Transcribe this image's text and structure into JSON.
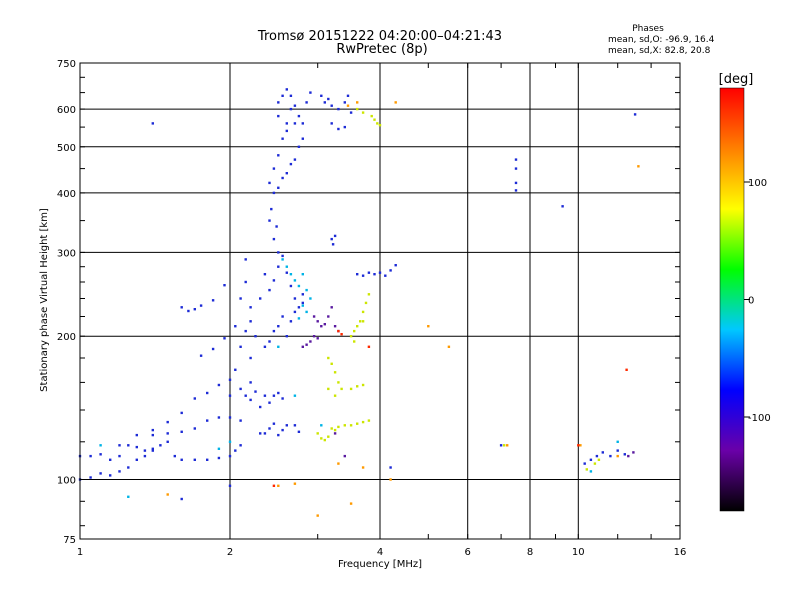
{
  "chart_data": {
    "type": "scatter",
    "title": "Tromsø 20151222 04:20:00–04:21:43",
    "subtitle": "RwPretec (8p)",
    "xlabel": "Frequency [MHz]",
    "ylabel": "Stationary phase Virtual Height [km]",
    "x_scale": "log",
    "y_scale": "log",
    "xlim": [
      1,
      16
    ],
    "ylim": [
      75,
      750
    ],
    "x_ticks": [
      1,
      2,
      4,
      6,
      8,
      10,
      16
    ],
    "x_tick_labels": [
      "1",
      "2",
      "4",
      "6",
      "8",
      "10",
      "16"
    ],
    "x_grid": [
      1,
      2,
      4,
      6,
      8,
      10,
      16
    ],
    "y_ticks": [
      75,
      100,
      200,
      300,
      400,
      500,
      600,
      750
    ],
    "y_tick_labels": [
      "75",
      "100",
      "200",
      "300",
      "400",
      "500",
      "600",
      "750"
    ],
    "y_grid": [
      100,
      200,
      300,
      400,
      500,
      600
    ],
    "grid": true,
    "legend": {
      "heading": "Phases",
      "line1": "mean, sd,O: -96.9, 16.4",
      "line2": "mean, sd,X:  82.8, 20.8",
      "placement": "top-right"
    },
    "colorbar": {
      "label": "[deg]",
      "range": [
        -180,
        180
      ],
      "ticks": [
        100,
        0,
        -100
      ],
      "tick_labels": [
        "100",
        "0",
        "-100"
      ],
      "colors": [
        "#000000",
        "#6a00a8",
        "#0000ff",
        "#00c8ff",
        "#00ff00",
        "#ffff00",
        "#ff8000",
        "#ff0000"
      ]
    },
    "series": [
      {
        "phase": -100,
        "color": "#1d2bd6",
        "points": [
          [
            1.0,
            112
          ],
          [
            1.05,
            112
          ],
          [
            1.1,
            113
          ],
          [
            1.15,
            110
          ],
          [
            1.2,
            112
          ],
          [
            1.25,
            118
          ],
          [
            1.3,
            117
          ],
          [
            1.35,
            115
          ],
          [
            1.4,
            116
          ],
          [
            1.45,
            118
          ],
          [
            1.5,
            120
          ],
          [
            1.55,
            112
          ],
          [
            1.6,
            110
          ],
          [
            1.7,
            110
          ],
          [
            1.8,
            110
          ],
          [
            1.9,
            111
          ],
          [
            2.0,
            112
          ],
          [
            2.05,
            115
          ],
          [
            2.1,
            118
          ],
          [
            1.0,
            100
          ],
          [
            1.05,
            101
          ],
          [
            1.1,
            103
          ],
          [
            1.15,
            102
          ],
          [
            1.2,
            104
          ],
          [
            1.25,
            106
          ],
          [
            1.3,
            110
          ],
          [
            1.35,
            112
          ],
          [
            1.4,
            115
          ],
          [
            1.2,
            118
          ],
          [
            1.3,
            124
          ],
          [
            1.4,
            127
          ],
          [
            1.5,
            132
          ],
          [
            1.6,
            138
          ],
          [
            1.7,
            148
          ],
          [
            1.8,
            152
          ],
          [
            1.9,
            158
          ],
          [
            2.0,
            162
          ],
          [
            1.4,
            124
          ],
          [
            1.5,
            125
          ],
          [
            1.6,
            126
          ],
          [
            1.7,
            128
          ],
          [
            1.8,
            133
          ],
          [
            1.9,
            135
          ],
          [
            2.0,
            135
          ],
          [
            2.1,
            133
          ],
          [
            1.75,
            182
          ],
          [
            1.85,
            188
          ],
          [
            1.95,
            198
          ],
          [
            2.05,
            210
          ],
          [
            2.1,
            240
          ],
          [
            2.15,
            260
          ],
          [
            2.2,
            230
          ],
          [
            2.15,
            290
          ],
          [
            1.6,
            230
          ],
          [
            1.65,
            226
          ],
          [
            1.7,
            228
          ],
          [
            1.75,
            232
          ],
          [
            1.85,
            238
          ],
          [
            1.95,
            256
          ],
          [
            2.0,
            150
          ],
          [
            2.05,
            170
          ],
          [
            2.1,
            190
          ],
          [
            2.15,
            205
          ],
          [
            2.2,
            215
          ],
          [
            2.25,
            200
          ],
          [
            2.2,
            180
          ],
          [
            2.2,
            160
          ],
          [
            2.1,
            155
          ],
          [
            2.15,
            150
          ],
          [
            2.2,
            147
          ],
          [
            2.25,
            153
          ],
          [
            2.3,
            142
          ],
          [
            2.35,
            150
          ],
          [
            2.4,
            145
          ],
          [
            2.45,
            150
          ],
          [
            2.5,
            152
          ],
          [
            2.55,
            148
          ],
          [
            2.3,
            125
          ],
          [
            2.35,
            125
          ],
          [
            2.4,
            128
          ],
          [
            2.45,
            131
          ],
          [
            2.5,
            124
          ],
          [
            2.55,
            127
          ],
          [
            2.6,
            130
          ],
          [
            2.7,
            130
          ],
          [
            2.75,
            126
          ],
          [
            2.3,
            240
          ],
          [
            2.35,
            270
          ],
          [
            2.4,
            250
          ],
          [
            2.45,
            262
          ],
          [
            2.5,
            280
          ],
          [
            2.55,
            295
          ],
          [
            2.6,
            272
          ],
          [
            2.65,
            255
          ],
          [
            2.7,
            240
          ],
          [
            2.75,
            230
          ],
          [
            2.8,
            245
          ],
          [
            2.35,
            190
          ],
          [
            2.4,
            195
          ],
          [
            2.45,
            205
          ],
          [
            2.5,
            210
          ],
          [
            2.55,
            220
          ],
          [
            2.6,
            200
          ],
          [
            2.65,
            215
          ],
          [
            2.7,
            225
          ],
          [
            2.8,
            235
          ],
          [
            2.4,
            350
          ],
          [
            2.45,
            320
          ],
          [
            2.5,
            300
          ],
          [
            2.42,
            370
          ],
          [
            2.48,
            340
          ],
          [
            2.4,
            420
          ],
          [
            2.45,
            450
          ],
          [
            2.5,
            480
          ],
          [
            2.55,
            520
          ],
          [
            2.6,
            560
          ],
          [
            2.65,
            600
          ],
          [
            2.5,
            620
          ],
          [
            2.55,
            640
          ],
          [
            2.6,
            660
          ],
          [
            2.65,
            640
          ],
          [
            2.7,
            610
          ],
          [
            2.75,
            580
          ],
          [
            2.8,
            560
          ],
          [
            2.85,
            620
          ],
          [
            2.9,
            650
          ],
          [
            2.45,
            400
          ],
          [
            2.5,
            410
          ],
          [
            2.55,
            430
          ],
          [
            2.6,
            440
          ],
          [
            2.65,
            460
          ],
          [
            2.7,
            470
          ],
          [
            2.75,
            500
          ],
          [
            2.8,
            520
          ],
          [
            2.6,
            540
          ],
          [
            2.7,
            560
          ],
          [
            2.5,
            580
          ],
          [
            3.05,
            640
          ],
          [
            3.1,
            620
          ],
          [
            3.15,
            630
          ],
          [
            3.2,
            610
          ],
          [
            3.3,
            600
          ],
          [
            3.4,
            620
          ],
          [
            3.45,
            640
          ],
          [
            3.5,
            590
          ],
          [
            3.2,
            560
          ],
          [
            3.3,
            545
          ],
          [
            3.4,
            550
          ],
          [
            3.2,
            320
          ],
          [
            3.25,
            325
          ],
          [
            3.22,
            312
          ],
          [
            3.6,
            270
          ],
          [
            3.7,
            268
          ],
          [
            3.8,
            272
          ],
          [
            3.9,
            270
          ],
          [
            4.0,
            272
          ],
          [
            4.1,
            268
          ],
          [
            4.2,
            275
          ],
          [
            4.3,
            282
          ],
          [
            7.5,
            470
          ],
          [
            7.5,
            450
          ],
          [
            7.5,
            420
          ],
          [
            7.5,
            405
          ],
          [
            9.3,
            375
          ],
          [
            13.0,
            585
          ],
          [
            10.3,
            108
          ],
          [
            10.6,
            110
          ],
          [
            10.9,
            112
          ],
          [
            11.2,
            114
          ],
          [
            11.6,
            112
          ],
          [
            12.0,
            115
          ],
          [
            12.4,
            113
          ],
          [
            7.0,
            118
          ],
          [
            1.4,
            560
          ],
          [
            4.2,
            106
          ],
          [
            1.6,
            91
          ],
          [
            2.0,
            97
          ]
        ]
      },
      {
        "phase": -140,
        "color": "#5a1aa0",
        "points": [
          [
            2.95,
            220
          ],
          [
            3.0,
            215
          ],
          [
            3.05,
            210
          ],
          [
            3.1,
            212
          ],
          [
            3.15,
            220
          ],
          [
            3.2,
            230
          ],
          [
            3.25,
            210
          ],
          [
            3.3,
            205
          ],
          [
            2.8,
            190
          ],
          [
            2.85,
            192
          ],
          [
            2.9,
            195
          ],
          [
            2.95,
            200
          ],
          [
            3.0,
            198
          ],
          [
            12.6,
            112
          ],
          [
            12.9,
            114
          ],
          [
            3.25,
            125
          ],
          [
            3.4,
            112
          ]
        ]
      },
      {
        "phase": 30,
        "color": "#00b4e6",
        "points": [
          [
            2.55,
            290
          ],
          [
            2.6,
            280
          ],
          [
            2.65,
            270
          ],
          [
            2.7,
            262
          ],
          [
            2.75,
            255
          ],
          [
            2.8,
            270
          ],
          [
            2.85,
            250
          ],
          [
            2.9,
            240
          ],
          [
            2.8,
            232
          ],
          [
            2.75,
            218
          ],
          [
            2.85,
            225
          ],
          [
            1.1,
            118
          ],
          [
            1.25,
            92
          ],
          [
            2.0,
            120
          ],
          [
            3.05,
            130
          ],
          [
            12.0,
            120
          ],
          [
            10.6,
            104
          ],
          [
            1.9,
            116
          ],
          [
            2.5,
            190
          ],
          [
            2.7,
            150
          ]
        ]
      },
      {
        "phase": 110,
        "color": "#cce600",
        "points": [
          [
            3.5,
            200
          ],
          [
            3.55,
            205
          ],
          [
            3.6,
            210
          ],
          [
            3.65,
            215
          ],
          [
            3.7,
            225
          ],
          [
            3.75,
            235
          ],
          [
            3.8,
            245
          ],
          [
            3.7,
            215
          ],
          [
            3.55,
            195
          ],
          [
            3.15,
            180
          ],
          [
            3.2,
            175
          ],
          [
            3.25,
            168
          ],
          [
            3.3,
            160
          ],
          [
            3.15,
            155
          ],
          [
            3.25,
            150
          ],
          [
            3.35,
            155
          ],
          [
            3.5,
            155
          ],
          [
            3.6,
            157
          ],
          [
            3.7,
            158
          ],
          [
            3.0,
            125
          ],
          [
            3.05,
            122
          ],
          [
            3.1,
            121
          ],
          [
            3.15,
            123
          ],
          [
            3.2,
            128
          ],
          [
            3.25,
            127
          ],
          [
            3.3,
            129
          ],
          [
            3.4,
            130
          ],
          [
            3.5,
            130
          ],
          [
            3.6,
            131
          ],
          [
            3.7,
            132
          ],
          [
            3.8,
            133
          ],
          [
            3.85,
            580
          ],
          [
            3.9,
            570
          ],
          [
            3.95,
            560
          ],
          [
            4.0,
            555
          ],
          [
            3.6,
            600
          ],
          [
            3.7,
            590
          ],
          [
            10.4,
            105
          ],
          [
            10.8,
            108
          ],
          [
            11.0,
            110
          ],
          [
            7.1,
            118
          ]
        ]
      },
      {
        "phase": 150,
        "color": "#ff9a00",
        "points": [
          [
            3.45,
            610
          ],
          [
            3.6,
            620
          ],
          [
            4.3,
            620
          ],
          [
            5.0,
            210
          ],
          [
            5.5,
            190
          ],
          [
            7.2,
            118
          ],
          [
            10.1,
            118
          ],
          [
            12.0,
            112
          ],
          [
            13.2,
            455
          ],
          [
            3.0,
            84
          ],
          [
            3.5,
            89
          ],
          [
            4.2,
            100
          ],
          [
            2.7,
            98
          ],
          [
            3.3,
            108
          ],
          [
            3.7,
            106
          ],
          [
            1.5,
            93
          ],
          [
            2.5,
            97
          ]
        ]
      },
      {
        "phase": 175,
        "color": "#ff2a00",
        "points": [
          [
            3.3,
            205
          ],
          [
            3.35,
            202
          ],
          [
            12.5,
            170
          ],
          [
            10.0,
            118
          ],
          [
            2.45,
            97
          ],
          [
            3.8,
            190
          ]
        ]
      }
    ]
  }
}
